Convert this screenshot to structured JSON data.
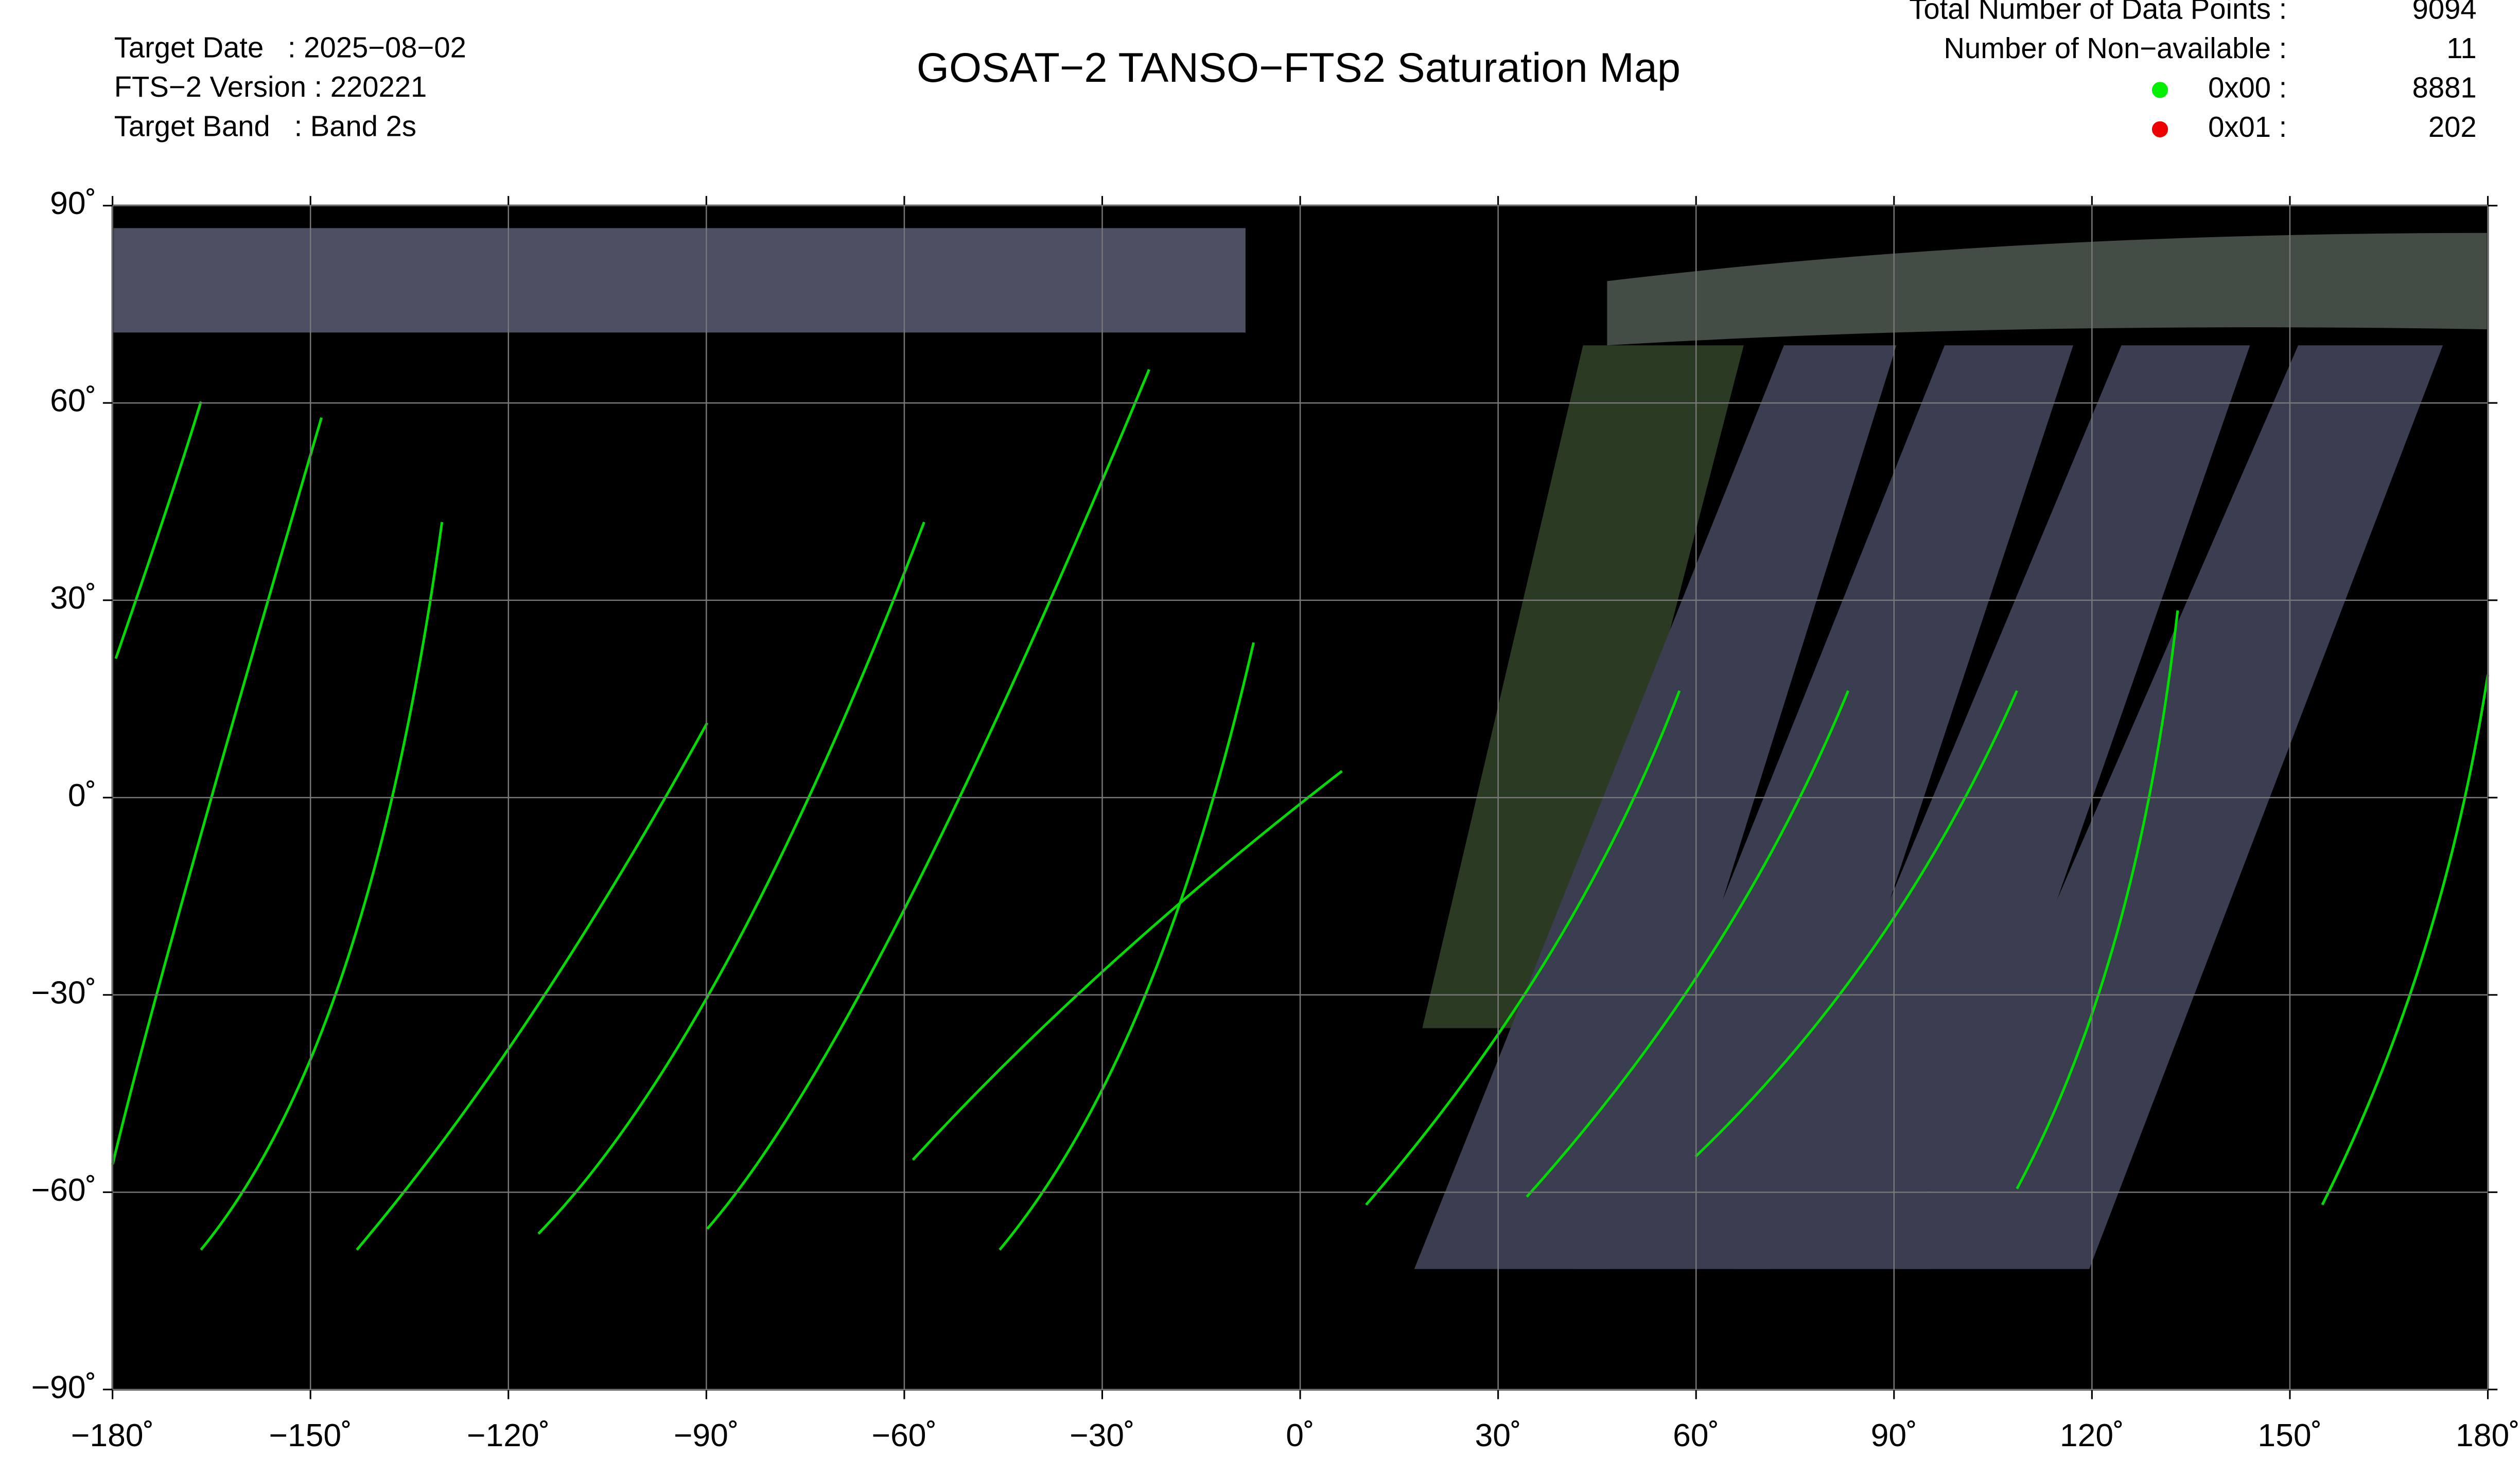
{
  "header": {
    "title": "GOSAT−2 TANSO−FTS2 Saturation Map",
    "info": [
      "Target Date   : 2025−08−02",
      "FTS−2 Version : 220221",
      "Target Band   : Band 2s"
    ]
  },
  "stats": [
    {
      "label": "Total Number of Data Points :",
      "value": 9094
    },
    {
      "label": "Number of Non−available :",
      "value": 11
    },
    {
      "label": "0x00 :",
      "value": 8881,
      "color": "#00ee00"
    },
    {
      "label": "0x01 :",
      "value": 202,
      "color": "#ee0000"
    }
  ],
  "map": {
    "xlim": [
      -180,
      180
    ],
    "ylim": [
      -90,
      90
    ],
    "xticks": [
      {
        "value": -180,
        "label": "−180˚"
      },
      {
        "value": -150,
        "label": "−150˚"
      },
      {
        "value": -120,
        "label": "−120˚"
      },
      {
        "value": -90,
        "label": "−90˚"
      },
      {
        "value": -60,
        "label": "−60˚"
      },
      {
        "value": -30,
        "label": "−30˚"
      },
      {
        "value": 0,
        "label": "0˚"
      },
      {
        "value": 30,
        "label": "30˚"
      },
      {
        "value": 60,
        "label": "60˚"
      },
      {
        "value": 90,
        "label": "90˚"
      },
      {
        "value": 120,
        "label": "120˚"
      },
      {
        "value": 150,
        "label": "150˚"
      },
      {
        "value": 180,
        "label": "180˚"
      }
    ],
    "yticks": [
      {
        "value": 90,
        "label": "90˚"
      },
      {
        "value": 60,
        "label": "60˚"
      },
      {
        "value": 30,
        "label": "30˚"
      },
      {
        "value": 0,
        "label": "0˚"
      },
      {
        "value": -30,
        "label": "−30˚"
      },
      {
        "value": -60,
        "label": "−60˚"
      },
      {
        "value": -90,
        "label": "−90˚"
      }
    ],
    "grid": true
  }
}
